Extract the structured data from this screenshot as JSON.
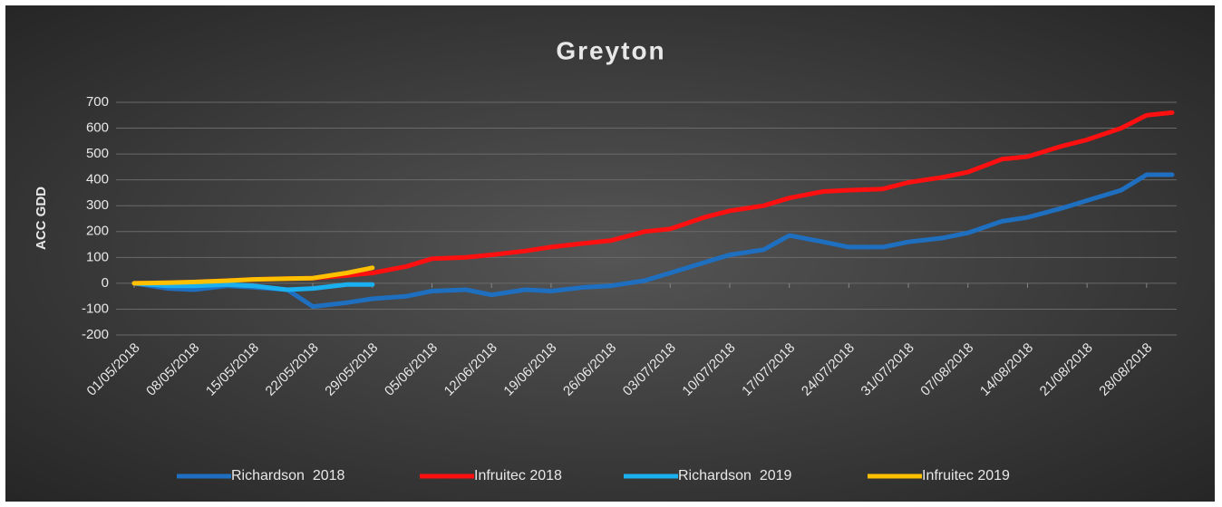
{
  "chart_data": {
    "type": "line",
    "title": "Greyton",
    "y_label": "ACC GDD",
    "x": [
      "01/05/2018",
      "05/05/2018",
      "08/05/2018",
      "12/05/2018",
      "15/05/2018",
      "19/05/2018",
      "22/05/2018",
      "26/05/2018",
      "29/05/2018",
      "02/06/2018",
      "05/06/2018",
      "09/06/2018",
      "12/06/2018",
      "16/06/2018",
      "19/06/2018",
      "23/06/2018",
      "26/06/2018",
      "30/06/2018",
      "03/07/2018",
      "07/07/2018",
      "10/07/2018",
      "14/07/2018",
      "17/07/2018",
      "21/07/2018",
      "24/07/2018",
      "28/07/2018",
      "31/07/2018",
      "04/08/2018",
      "07/08/2018",
      "11/08/2018",
      "14/08/2018",
      "18/08/2018",
      "21/08/2018",
      "25/08/2018",
      "28/08/2018",
      "31/08/2018"
    ],
    "series": [
      {
        "name": "Richardson  2018",
        "color": "#1f6fc0",
        "values": [
          0,
          -20,
          -25,
          -10,
          -15,
          -25,
          -90,
          -75,
          -60,
          -50,
          -30,
          -25,
          -45,
          -25,
          -30,
          -15,
          -10,
          10,
          40,
          80,
          110,
          130,
          185,
          160,
          140,
          140,
          160,
          175,
          195,
          240,
          255,
          290,
          320,
          360,
          420,
          420
        ]
      },
      {
        "name": "Infruitec 2018",
        "color": "#ff1010",
        "values": [
          0,
          2,
          5,
          10,
          15,
          18,
          20,
          30,
          40,
          65,
          95,
          100,
          110,
          125,
          140,
          155,
          165,
          200,
          210,
          255,
          280,
          300,
          330,
          355,
          360,
          365,
          390,
          410,
          430,
          480,
          490,
          530,
          555,
          600,
          650,
          660
        ]
      },
      {
        "name": "Richardson  2019",
        "color": "#1ab0f0",
        "values": [
          0,
          -10,
          -10,
          -5,
          -10,
          -25,
          -20,
          -5,
          -5,
          null,
          null,
          null,
          null,
          null,
          null,
          null,
          null,
          null,
          null,
          null,
          null,
          null,
          null,
          null,
          null,
          null,
          null,
          null,
          null,
          null,
          null,
          null,
          null,
          null,
          null,
          null
        ]
      },
      {
        "name": "Infruitec 2019",
        "color": "#ffc000",
        "values": [
          0,
          2,
          5,
          10,
          15,
          18,
          20,
          40,
          60,
          null,
          null,
          null,
          null,
          null,
          null,
          null,
          null,
          null,
          null,
          null,
          null,
          null,
          null,
          null,
          null,
          null,
          null,
          null,
          null,
          null,
          null,
          null,
          null,
          null,
          null,
          null
        ]
      }
    ],
    "xlim": [
      "01/05/2018",
      "31/08/2018"
    ],
    "xticks": [
      "01/05/2018",
      "08/05/2018",
      "15/05/2018",
      "22/05/2018",
      "29/05/2018",
      "05/06/2018",
      "12/06/2018",
      "19/06/2018",
      "26/06/2018",
      "03/07/2018",
      "10/07/2018",
      "17/07/2018",
      "24/07/2018",
      "31/07/2018",
      "07/08/2018",
      "14/08/2018",
      "21/08/2018",
      "28/08/2018"
    ],
    "ylim": [
      -200,
      700
    ],
    "yticks": [
      -200,
      -100,
      0,
      100,
      200,
      300,
      400,
      500,
      600,
      700
    ],
    "grid": true,
    "legend": "bottom"
  }
}
